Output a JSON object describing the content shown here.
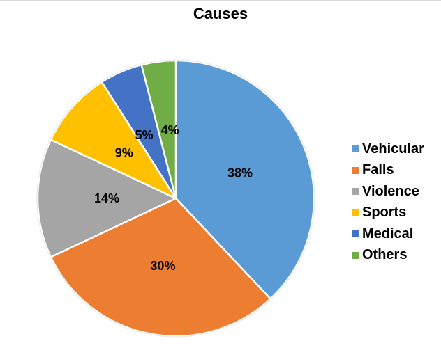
{
  "chart_data": {
    "type": "pie",
    "title": "Causes",
    "categories": [
      "Vehicular",
      "Falls",
      "Violence",
      "Sports",
      "Medical",
      "Others"
    ],
    "values": [
      38,
      30,
      14,
      9,
      5,
      4
    ],
    "data_labels": [
      "38%",
      "30%",
      "14%",
      "9%",
      "5%",
      "4%"
    ],
    "colors": [
      "#5b9bd5",
      "#ed7d31",
      "#a5a5a5",
      "#ffc000",
      "#4472c4",
      "#70ad47"
    ],
    "legend_position": "right",
    "slice_border_color": "#ffffff",
    "start_angle": "top",
    "direction": "clockwise"
  }
}
